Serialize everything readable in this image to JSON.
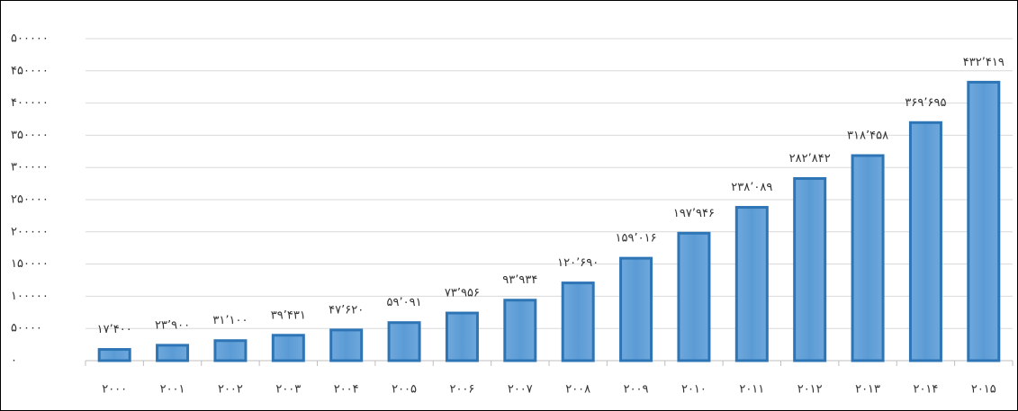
{
  "chart_data": {
    "type": "bar",
    "categories": [
      "۲۰۰۰",
      "۲۰۰۱",
      "۲۰۰۲",
      "۲۰۰۳",
      "۲۰۰۴",
      "۲۰۰۵",
      "۲۰۰۶",
      "۲۰۰۷",
      "۲۰۰۸",
      "۲۰۰۹",
      "۲۰۱۰",
      "۲۰۱۱",
      "۲۰۱۲",
      "۲۰۱۳",
      "۲۰۱۴",
      "۲۰۱۵"
    ],
    "values": [
      17400,
      23900,
      31100,
      39431,
      47620,
      59091,
      73956,
      93934,
      120690,
      159016,
      197946,
      238089,
      282842,
      318458,
      369695,
      432419
    ],
    "value_labels": [
      "۱۷٬۴۰۰",
      "۲۳٬۹۰۰",
      "۳۱٬۱۰۰",
      "۳۹٬۴۳۱",
      "۴۷٬۶۲۰",
      "۵۹٬۰۹۱",
      "۷۳٬۹۵۶",
      "۹۳٬۹۳۴",
      "۱۲۰٬۶۹۰",
      "۱۵۹٬۰۱۶",
      "۱۹۷٬۹۴۶",
      "۲۳۸٬۰۸۹",
      "۲۸۲٬۸۴۲",
      "۳۱۸٬۴۵۸",
      "۳۶۹٬۶۹۵",
      "۴۳۲٬۴۱۹"
    ],
    "color": "#5b9bd5",
    "ylim": [
      0,
      500000
    ],
    "yticks": [
      {
        "value": 0,
        "label": "۰"
      },
      {
        "value": 50000,
        "label": "۵۰۰۰۰"
      },
      {
        "value": 100000,
        "label": "۱۰۰۰۰۰"
      },
      {
        "value": 150000,
        "label": "۱۵۰۰۰۰"
      },
      {
        "value": 200000,
        "label": "۲۰۰۰۰۰"
      },
      {
        "value": 250000,
        "label": "۲۵۰۰۰۰"
      },
      {
        "value": 300000,
        "label": "۳۰۰۰۰۰"
      },
      {
        "value": 350000,
        "label": "۳۵۰۰۰۰"
      },
      {
        "value": 400000,
        "label": "۴۰۰۰۰۰"
      },
      {
        "value": 450000,
        "label": "۴۵۰۰۰۰"
      },
      {
        "value": 500000,
        "label": "۵۰۰۰۰۰"
      }
    ],
    "grid": true
  }
}
